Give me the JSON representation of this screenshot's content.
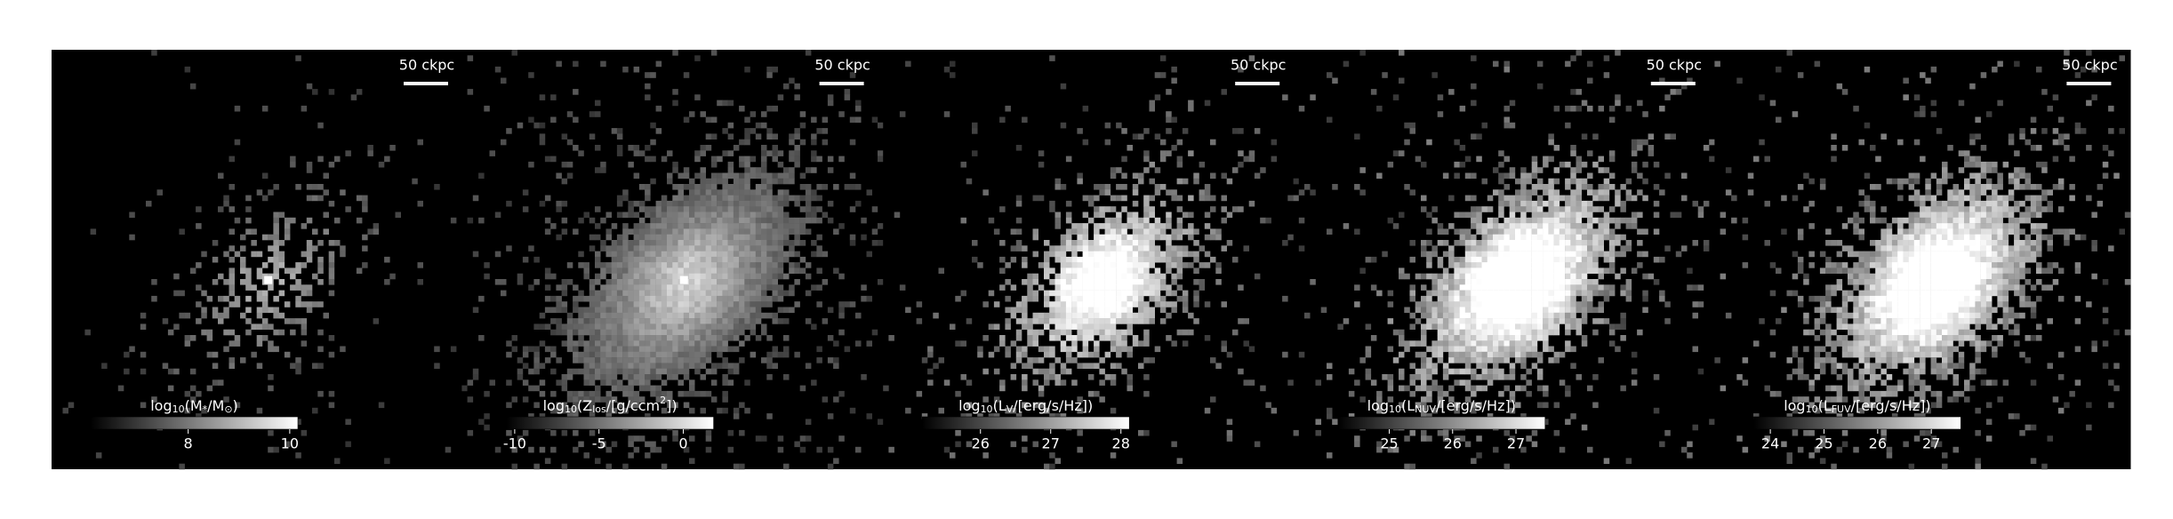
{
  "panels": [
    {
      "scale_label": "50 ckpc",
      "colorbar": {
        "label": [
          {
            "text": "log"
          },
          {
            "text": "10",
            "sub": true
          },
          {
            "text": "(M"
          },
          {
            "text": "*",
            "sub": true
          },
          {
            "text": "/M"
          },
          {
            "text": "⊙",
            "sub": true
          },
          {
            "text": ")"
          }
        ],
        "lim": [
          6.08,
          10.16
        ],
        "ticks": [
          8,
          10
        ]
      }
    },
    {
      "scale_label": "50 ckpc",
      "colorbar": {
        "label": [
          {
            "text": "log"
          },
          {
            "text": "10",
            "sub": true
          },
          {
            "text": "(Z"
          },
          {
            "text": "los",
            "sub": true
          },
          {
            "text": "/[g/ccm"
          },
          {
            "text": "2",
            "sup": true
          },
          {
            "text": "])"
          }
        ],
        "lim": [
          -10.49,
          1.8
        ],
        "ticks": [
          -10,
          -5,
          0
        ]
      }
    },
    {
      "scale_label": "50 ckpc",
      "colorbar": {
        "label": [
          {
            "text": "log"
          },
          {
            "text": "10",
            "sub": true
          },
          {
            "text": "(L"
          },
          {
            "text": "V",
            "sub": true
          },
          {
            "text": "/[erg/s/Hz])"
          }
        ],
        "lim": [
          25.17,
          28.12
        ],
        "ticks": [
          26,
          27,
          28
        ]
      }
    },
    {
      "scale_label": "50 ckpc",
      "colorbar": {
        "label": [
          {
            "text": "log"
          },
          {
            "text": "10",
            "sub": true
          },
          {
            "text": "(L"
          },
          {
            "text": "NUV",
            "sub": true
          },
          {
            "text": "/[erg/s/Hz])"
          }
        ],
        "lim": [
          24.19,
          27.46
        ],
        "ticks": [
          25,
          26,
          27
        ]
      }
    },
    {
      "scale_label": "50 ckpc",
      "colorbar": {
        "label": [
          {
            "text": "log"
          },
          {
            "text": "10",
            "sub": true
          },
          {
            "text": "(L"
          },
          {
            "text": "FUV",
            "sub": true
          },
          {
            "text": "/[erg/s/Hz])"
          }
        ],
        "lim": [
          23.69,
          27.55
        ],
        "ticks": [
          24,
          25,
          26,
          27
        ]
      }
    }
  ]
}
